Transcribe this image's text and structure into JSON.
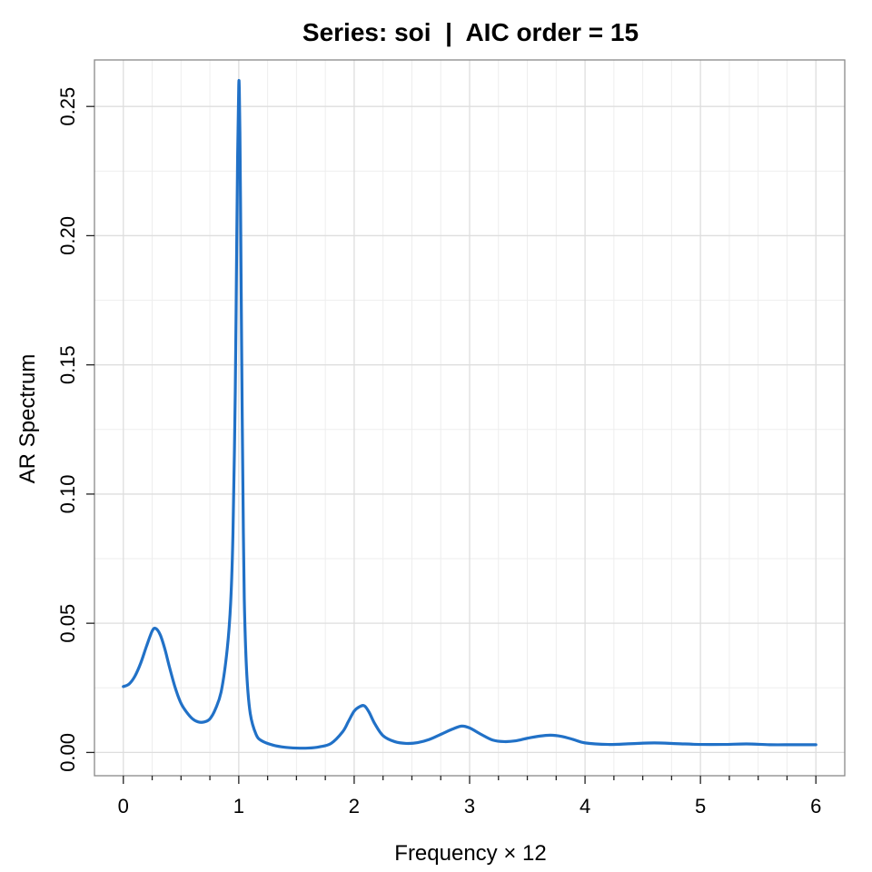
{
  "chart_data": {
    "type": "line",
    "title": "Series: soi  |  AIC order = 15",
    "xlabel": "Frequency × 12",
    "ylabel": "AR Spectrum",
    "xlim": [
      -0.25,
      6.25
    ],
    "ylim": [
      -0.009,
      0.268
    ],
    "x_ticks": [
      0,
      1,
      2,
      3,
      4,
      5,
      6
    ],
    "x_tick_labels": [
      "0",
      "1",
      "2",
      "3",
      "4",
      "5",
      "6"
    ],
    "y_ticks": [
      0.0,
      0.05,
      0.1,
      0.15,
      0.2,
      0.25
    ],
    "y_tick_labels": [
      "0.00",
      "0.05",
      "0.10",
      "0.15",
      "0.20",
      "0.25"
    ],
    "grid": true,
    "line_color": "#2171c7",
    "series": [
      {
        "x": [
          0,
          0.05,
          0.1,
          0.15,
          0.2,
          0.25,
          0.28,
          0.32,
          0.36,
          0.4,
          0.45,
          0.5,
          0.55,
          0.6,
          0.65,
          0.7,
          0.75,
          0.8,
          0.85,
          0.9,
          0.93,
          0.95,
          0.97,
          0.98,
          0.99,
          1.0,
          1.005,
          1.01,
          1.015,
          1.02,
          1.03,
          1.04,
          1.05,
          1.07,
          1.1,
          1.15,
          1.2,
          1.3,
          1.4,
          1.5,
          1.6,
          1.7,
          1.8,
          1.9,
          1.95,
          2.0,
          2.05,
          2.09,
          2.13,
          2.18,
          2.25,
          2.35,
          2.45,
          2.55,
          2.65,
          2.75,
          2.85,
          2.93,
          3.0,
          3.1,
          3.2,
          3.3,
          3.4,
          3.5,
          3.6,
          3.7,
          3.8,
          3.9,
          4.0,
          4.2,
          4.4,
          4.6,
          4.8,
          5.0,
          5.2,
          5.4,
          5.6,
          5.8,
          6.0
        ],
        "values": [
          0.0255,
          0.0265,
          0.0295,
          0.0345,
          0.041,
          0.047,
          0.048,
          0.0455,
          0.04,
          0.033,
          0.025,
          0.019,
          0.0155,
          0.013,
          0.0118,
          0.0118,
          0.013,
          0.017,
          0.024,
          0.04,
          0.058,
          0.085,
          0.14,
          0.185,
          0.23,
          0.258,
          0.256,
          0.24,
          0.215,
          0.185,
          0.13,
          0.085,
          0.055,
          0.03,
          0.015,
          0.007,
          0.0045,
          0.0028,
          0.002,
          0.0017,
          0.0017,
          0.0022,
          0.0035,
          0.008,
          0.012,
          0.016,
          0.0178,
          0.018,
          0.0155,
          0.011,
          0.0065,
          0.0042,
          0.0035,
          0.0038,
          0.005,
          0.007,
          0.009,
          0.0102,
          0.0095,
          0.007,
          0.0048,
          0.0042,
          0.0045,
          0.0055,
          0.0063,
          0.0067,
          0.0062,
          0.005,
          0.0037,
          0.0031,
          0.0034,
          0.0037,
          0.0034,
          0.0031,
          0.0031,
          0.0033,
          0.003,
          0.003,
          0.003
        ]
      }
    ]
  }
}
